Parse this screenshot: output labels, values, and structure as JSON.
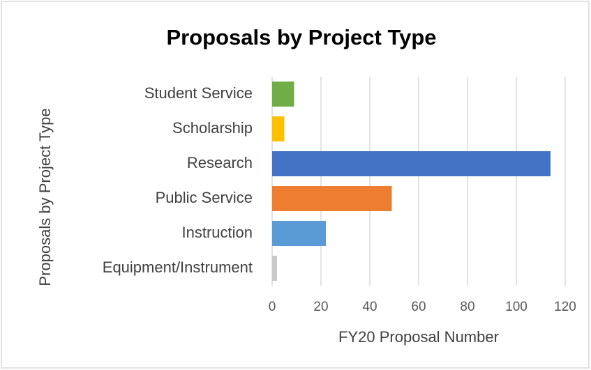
{
  "chart_data": {
    "type": "bar",
    "orientation": "horizontal",
    "title": "Proposals by Project Type",
    "x_label": "FY20 Proposal Number",
    "y_label": "Proposals by Project Type",
    "categories": [
      "Student Service",
      "Scholarship",
      "Research",
      "Public Service",
      "Instruction",
      "Equipment/Instrument"
    ],
    "values": [
      9,
      5,
      114,
      49,
      22,
      2
    ],
    "colors": [
      "#70ad47",
      "#ffc000",
      "#4472c4",
      "#ed7d31",
      "#5b9bd5",
      "#c9c9c9"
    ],
    "xlim": [
      0,
      120
    ],
    "xticks": [
      0,
      20,
      40,
      60,
      80,
      100,
      120
    ],
    "grid": true
  }
}
